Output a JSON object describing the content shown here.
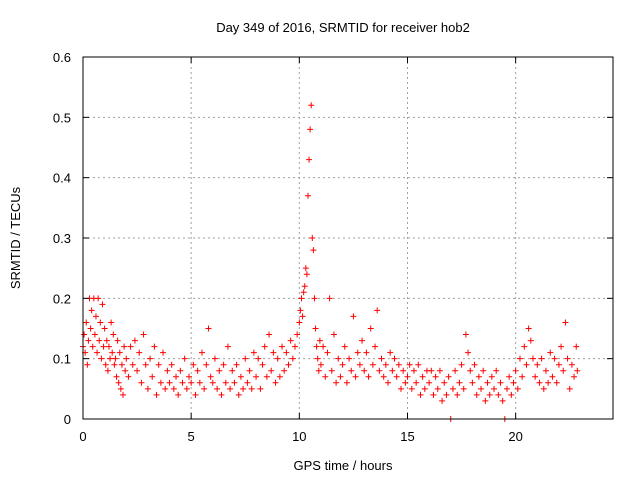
{
  "chart_data": {
    "type": "scatter",
    "title": "Day 349 of 2016, SRMTID for receiver hob2",
    "xlabel": "GPS time / hours",
    "ylabel": "SRMTID / TECUs",
    "xlim": [
      0,
      24.5
    ],
    "ylim": [
      0,
      0.6
    ],
    "xticks": [
      0,
      5,
      10,
      15,
      20
    ],
    "xtick_labels": [
      "0",
      "5",
      "10",
      "15",
      "20"
    ],
    "yticks": [
      0,
      0.1,
      0.2,
      0.3,
      0.4,
      0.5,
      0.6
    ],
    "ytick_labels": [
      "0",
      "0.1",
      "0.2",
      "0.3",
      "0.4",
      "0.5",
      "0.6"
    ],
    "grid": true,
    "marker": "plus",
    "color": "#ff0000",
    "series": [
      {
        "name": "SRMTID",
        "points": [
          [
            0.0,
            0.12
          ],
          [
            0.05,
            0.14
          ],
          [
            0.1,
            0.11
          ],
          [
            0.15,
            0.16
          ],
          [
            0.2,
            0.09
          ],
          [
            0.25,
            0.13
          ],
          [
            0.3,
            0.2
          ],
          [
            0.35,
            0.15
          ],
          [
            0.4,
            0.18
          ],
          [
            0.45,
            0.12
          ],
          [
            0.5,
            0.2
          ],
          [
            0.55,
            0.14
          ],
          [
            0.6,
            0.17
          ],
          [
            0.65,
            0.11
          ],
          [
            0.7,
            0.2
          ],
          [
            0.75,
            0.13
          ],
          [
            0.8,
            0.16
          ],
          [
            0.85,
            0.1
          ],
          [
            0.9,
            0.19
          ],
          [
            0.95,
            0.12
          ],
          [
            1.0,
            0.15
          ],
          [
            1.05,
            0.09
          ],
          [
            1.1,
            0.13
          ],
          [
            1.15,
            0.08
          ],
          [
            1.2,
            0.12
          ],
          [
            1.25,
            0.1
          ],
          [
            1.3,
            0.16
          ],
          [
            1.35,
            0.11
          ],
          [
            1.4,
            0.14
          ],
          [
            1.45,
            0.09
          ],
          [
            1.5,
            0.1
          ],
          [
            1.55,
            0.07
          ],
          [
            1.6,
            0.13
          ],
          [
            1.65,
            0.06
          ],
          [
            1.7,
            0.11
          ],
          [
            1.75,
            0.05
          ],
          [
            1.8,
            0.09
          ],
          [
            1.85,
            0.04
          ],
          [
            1.9,
            0.12
          ],
          [
            1.95,
            0.08
          ],
          [
            2.0,
            0.1
          ],
          [
            2.1,
            0.07
          ],
          [
            2.2,
            0.12
          ],
          [
            2.3,
            0.09
          ],
          [
            2.4,
            0.13
          ],
          [
            2.5,
            0.08
          ],
          [
            2.6,
            0.11
          ],
          [
            2.7,
            0.06
          ],
          [
            2.8,
            0.14
          ],
          [
            2.9,
            0.09
          ],
          [
            3.0,
            0.05
          ],
          [
            3.1,
            0.1
          ],
          [
            3.2,
            0.07
          ],
          [
            3.3,
            0.12
          ],
          [
            3.4,
            0.04
          ],
          [
            3.5,
            0.09
          ],
          [
            3.6,
            0.06
          ],
          [
            3.7,
            0.11
          ],
          [
            3.8,
            0.05
          ],
          [
            3.9,
            0.08
          ],
          [
            4.0,
            0.06
          ],
          [
            4.1,
            0.09
          ],
          [
            4.2,
            0.05
          ],
          [
            4.3,
            0.07
          ],
          [
            4.4,
            0.04
          ],
          [
            4.5,
            0.08
          ],
          [
            4.6,
            0.06
          ],
          [
            4.7,
            0.1
          ],
          [
            4.8,
            0.05
          ],
          [
            4.9,
            0.07
          ],
          [
            5.0,
            0.06
          ],
          [
            5.1,
            0.09
          ],
          [
            5.2,
            0.04
          ],
          [
            5.3,
            0.08
          ],
          [
            5.4,
            0.06
          ],
          [
            5.5,
            0.11
          ],
          [
            5.6,
            0.05
          ],
          [
            5.7,
            0.09
          ],
          [
            5.8,
            0.15
          ],
          [
            5.9,
            0.07
          ],
          [
            6.0,
            0.06
          ],
          [
            6.1,
            0.1
          ],
          [
            6.2,
            0.05
          ],
          [
            6.3,
            0.08
          ],
          [
            6.4,
            0.04
          ],
          [
            6.5,
            0.09
          ],
          [
            6.6,
            0.06
          ],
          [
            6.7,
            0.12
          ],
          [
            6.8,
            0.05
          ],
          [
            6.9,
            0.08
          ],
          [
            7.0,
            0.06
          ],
          [
            7.1,
            0.09
          ],
          [
            7.2,
            0.04
          ],
          [
            7.3,
            0.07
          ],
          [
            7.4,
            0.05
          ],
          [
            7.5,
            0.1
          ],
          [
            7.6,
            0.06
          ],
          [
            7.7,
            0.08
          ],
          [
            7.8,
            0.05
          ],
          [
            7.9,
            0.11
          ],
          [
            8.0,
            0.07
          ],
          [
            8.1,
            0.1
          ],
          [
            8.2,
            0.05
          ],
          [
            8.3,
            0.09
          ],
          [
            8.4,
            0.12
          ],
          [
            8.5,
            0.07
          ],
          [
            8.6,
            0.14
          ],
          [
            8.7,
            0.08
          ],
          [
            8.8,
            0.11
          ],
          [
            8.9,
            0.06
          ],
          [
            9.0,
            0.1
          ],
          [
            9.1,
            0.07
          ],
          [
            9.2,
            0.12
          ],
          [
            9.3,
            0.08
          ],
          [
            9.4,
            0.11
          ],
          [
            9.5,
            0.09
          ],
          [
            9.6,
            0.13
          ],
          [
            9.7,
            0.1
          ],
          [
            9.8,
            0.12
          ],
          [
            9.9,
            0.14
          ],
          [
            10.0,
            0.16
          ],
          [
            10.05,
            0.18
          ],
          [
            10.1,
            0.2
          ],
          [
            10.15,
            0.17
          ],
          [
            10.2,
            0.21
          ],
          [
            10.25,
            0.22
          ],
          [
            10.3,
            0.25
          ],
          [
            10.35,
            0.24
          ],
          [
            10.4,
            0.37
          ],
          [
            10.45,
            0.43
          ],
          [
            10.5,
            0.48
          ],
          [
            10.55,
            0.52
          ],
          [
            10.6,
            0.3
          ],
          [
            10.65,
            0.28
          ],
          [
            10.7,
            0.2
          ],
          [
            10.75,
            0.15
          ],
          [
            10.8,
            0.12
          ],
          [
            10.85,
            0.1
          ],
          [
            10.9,
            0.08
          ],
          [
            10.95,
            0.13
          ],
          [
            11.0,
            0.09
          ],
          [
            11.1,
            0.12
          ],
          [
            11.2,
            0.07
          ],
          [
            11.3,
            0.11
          ],
          [
            11.4,
            0.2
          ],
          [
            11.5,
            0.08
          ],
          [
            11.6,
            0.14
          ],
          [
            11.7,
            0.06
          ],
          [
            11.8,
            0.1
          ],
          [
            11.9,
            0.07
          ],
          [
            12.0,
            0.09
          ],
          [
            12.1,
            0.12
          ],
          [
            12.2,
            0.06
          ],
          [
            12.3,
            0.1
          ],
          [
            12.4,
            0.08
          ],
          [
            12.5,
            0.17
          ],
          [
            12.6,
            0.07
          ],
          [
            12.7,
            0.11
          ],
          [
            12.8,
            0.09
          ],
          [
            12.9,
            0.13
          ],
          [
            13.0,
            0.08
          ],
          [
            13.1,
            0.11
          ],
          [
            13.2,
            0.07
          ],
          [
            13.3,
            0.15
          ],
          [
            13.4,
            0.09
          ],
          [
            13.5,
            0.12
          ],
          [
            13.6,
            0.18
          ],
          [
            13.7,
            0.08
          ],
          [
            13.8,
            0.1
          ],
          [
            13.9,
            0.07
          ],
          [
            14.0,
            0.09
          ],
          [
            14.1,
            0.06
          ],
          [
            14.2,
            0.11
          ],
          [
            14.3,
            0.08
          ],
          [
            14.4,
            0.1
          ],
          [
            14.5,
            0.07
          ],
          [
            14.6,
            0.09
          ],
          [
            14.7,
            0.05
          ],
          [
            14.8,
            0.08
          ],
          [
            14.9,
            0.06
          ],
          [
            15.0,
            0.07
          ],
          [
            15.1,
            0.09
          ],
          [
            15.2,
            0.05
          ],
          [
            15.3,
            0.08
          ],
          [
            15.4,
            0.06
          ],
          [
            15.5,
            0.09
          ],
          [
            15.6,
            0.04
          ],
          [
            15.7,
            0.07
          ],
          [
            15.8,
            0.05
          ],
          [
            15.9,
            0.08
          ],
          [
            16.0,
            0.06
          ],
          [
            16.1,
            0.08
          ],
          [
            16.2,
            0.04
          ],
          [
            16.3,
            0.07
          ],
          [
            16.4,
            0.05
          ],
          [
            16.5,
            0.08
          ],
          [
            16.6,
            0.03
          ],
          [
            16.7,
            0.06
          ],
          [
            16.8,
            0.04
          ],
          [
            16.9,
            0.07
          ],
          [
            17.0,
            0.0
          ],
          [
            17.1,
            0.05
          ],
          [
            17.2,
            0.08
          ],
          [
            17.3,
            0.04
          ],
          [
            17.4,
            0.06
          ],
          [
            17.5,
            0.09
          ],
          [
            17.6,
            0.05
          ],
          [
            17.7,
            0.14
          ],
          [
            17.8,
            0.11
          ],
          [
            17.9,
            0.08
          ],
          [
            18.0,
            0.06
          ],
          [
            18.1,
            0.09
          ],
          [
            18.2,
            0.04
          ],
          [
            18.3,
            0.07
          ],
          [
            18.4,
            0.05
          ],
          [
            18.5,
            0.08
          ],
          [
            18.6,
            0.03
          ],
          [
            18.7,
            0.06
          ],
          [
            18.8,
            0.04
          ],
          [
            18.9,
            0.07
          ],
          [
            19.0,
            0.05
          ],
          [
            19.1,
            0.08
          ],
          [
            19.2,
            0.04
          ],
          [
            19.3,
            0.06
          ],
          [
            19.4,
            0.03
          ],
          [
            19.5,
            0.0
          ],
          [
            19.6,
            0.05
          ],
          [
            19.7,
            0.07
          ],
          [
            19.8,
            0.04
          ],
          [
            19.9,
            0.06
          ],
          [
            20.0,
            0.08
          ],
          [
            20.1,
            0.05
          ],
          [
            20.2,
            0.1
          ],
          [
            20.3,
            0.07
          ],
          [
            20.4,
            0.12
          ],
          [
            20.5,
            0.09
          ],
          [
            20.6,
            0.15
          ],
          [
            20.7,
            0.13
          ],
          [
            20.8,
            0.1
          ],
          [
            20.9,
            0.07
          ],
          [
            21.0,
            0.09
          ],
          [
            21.1,
            0.06
          ],
          [
            21.2,
            0.1
          ],
          [
            21.3,
            0.05
          ],
          [
            21.4,
            0.08
          ],
          [
            21.5,
            0.06
          ],
          [
            21.6,
            0.11
          ],
          [
            21.7,
            0.07
          ],
          [
            21.8,
            0.1
          ],
          [
            21.9,
            0.06
          ],
          [
            22.0,
            0.09
          ],
          [
            22.1,
            0.12
          ],
          [
            22.2,
            0.08
          ],
          [
            22.3,
            0.16
          ],
          [
            22.4,
            0.1
          ],
          [
            22.5,
            0.05
          ],
          [
            22.6,
            0.09
          ],
          [
            22.7,
            0.07
          ],
          [
            22.8,
            0.12
          ],
          [
            22.85,
            0.08
          ]
        ]
      }
    ]
  }
}
